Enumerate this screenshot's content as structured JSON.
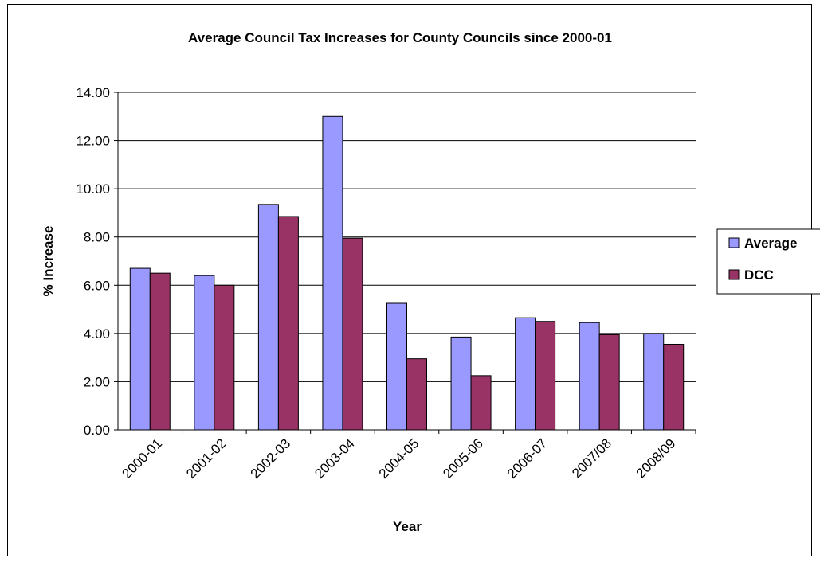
{
  "chart_data": {
    "type": "bar",
    "title": "Average Council Tax Increases for County Councils since 2000-01",
    "xlabel": "Year",
    "ylabel": "% Increase",
    "categories": [
      "2000-01",
      "2001-02",
      "2002-03",
      "2003-04",
      "2004-05",
      "2005-06",
      "2006-07",
      "2007/08",
      "2008/09"
    ],
    "series": [
      {
        "name": "Average",
        "color": "#9999ff",
        "values": [
          6.7,
          6.4,
          9.35,
          13.0,
          5.25,
          3.85,
          4.65,
          4.45,
          4.0
        ]
      },
      {
        "name": "DCC",
        "color": "#993366",
        "values": [
          6.5,
          6.0,
          8.85,
          7.95,
          2.95,
          2.25,
          4.5,
          3.95,
          3.55
        ]
      }
    ],
    "ylim": [
      0,
      14
    ],
    "yticks": [
      "0.00",
      "2.00",
      "4.00",
      "6.00",
      "8.00",
      "10.00",
      "12.00",
      "14.00"
    ],
    "grid": true,
    "legend_position": "right"
  }
}
